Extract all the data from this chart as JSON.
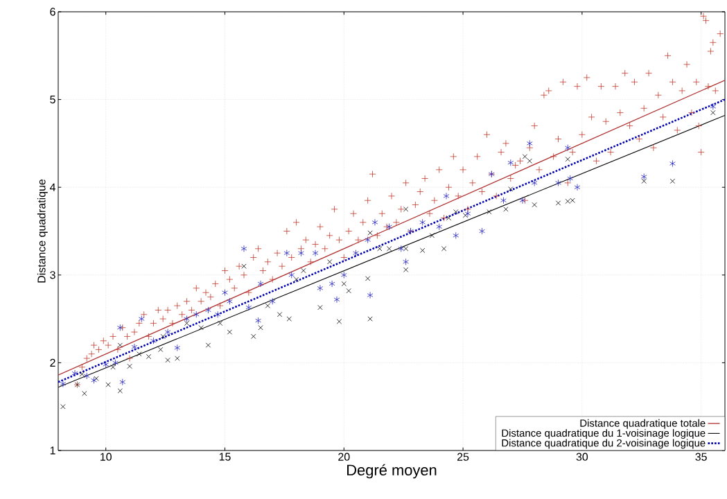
{
  "chart_data": {
    "type": "scatter",
    "xlabel": "Degré moyen",
    "ylabel": "Distance quadratique",
    "xlim": [
      8,
      36
    ],
    "ylim": [
      1,
      6
    ],
    "xticks": [
      10,
      15,
      20,
      25,
      30,
      35
    ],
    "yticks": [
      1,
      2,
      3,
      4,
      5,
      6
    ],
    "grid": true,
    "legend": "bottom right",
    "series": [
      {
        "type": "scatter",
        "color": "#c0392b",
        "marker": "plus",
        "x": [
          8.8,
          9.0,
          9.2,
          9.4,
          9.5,
          9.7,
          9.9,
          10.1,
          10.3,
          10.5,
          10.7,
          10.9,
          11.0,
          11.2,
          11.4,
          11.6,
          11.8,
          12.0,
          12.2,
          12.4,
          12.6,
          12.8,
          13.0,
          13.2,
          13.4,
          13.6,
          13.8,
          14.0,
          14.2,
          14.4,
          14.6,
          14.8,
          15.0,
          15.2,
          15.4,
          15.6,
          15.8,
          16.0,
          16.2,
          16.4,
          16.6,
          16.8,
          17.0,
          17.2,
          17.4,
          17.6,
          17.8,
          18.0,
          18.2,
          18.4,
          18.6,
          18.8,
          19.0,
          19.2,
          19.4,
          19.6,
          19.8,
          20.0,
          20.2,
          20.4,
          20.6,
          20.8,
          21.0,
          21.2,
          21.4,
          21.6,
          21.8,
          22.0,
          22.2,
          22.4,
          22.6,
          22.8,
          23.0,
          23.2,
          23.4,
          23.6,
          23.8,
          24.0,
          24.2,
          24.4,
          24.6,
          24.8,
          25.0,
          25.2,
          25.4,
          25.6,
          25.8,
          26.0,
          26.2,
          26.4,
          26.6,
          26.8,
          27.0,
          27.2,
          27.4,
          27.6,
          27.8,
          28.0,
          28.2,
          28.4,
          28.6,
          28.8,
          29.0,
          29.2,
          29.4,
          29.6,
          29.8,
          30.0,
          30.2,
          30.4,
          30.6,
          30.8,
          31.0,
          31.2,
          31.4,
          31.6,
          31.8,
          32.0,
          32.2,
          32.4,
          32.6,
          32.8,
          33.0,
          33.2,
          33.4,
          33.6,
          33.8,
          34.0,
          34.2,
          34.4,
          34.6,
          34.8,
          35.0,
          35.2,
          35.4,
          35.6,
          35.8,
          35.5,
          35.3,
          35.1,
          34.9
        ],
        "values": [
          1.75,
          1.95,
          2.05,
          2.1,
          2.2,
          2.15,
          2.25,
          2.2,
          2.3,
          2.15,
          2.4,
          2.3,
          2.05,
          2.35,
          2.45,
          2.55,
          2.3,
          2.45,
          2.6,
          2.5,
          2.6,
          2.45,
          2.65,
          2.55,
          2.7,
          2.6,
          2.85,
          2.7,
          2.8,
          2.75,
          2.9,
          2.65,
          3.05,
          2.95,
          2.85,
          3.1,
          3.0,
          2.8,
          3.2,
          3.3,
          3.05,
          3.15,
          2.95,
          3.25,
          3.1,
          3.5,
          3.2,
          3.6,
          3.3,
          3.4,
          3.15,
          3.35,
          3.55,
          3.3,
          3.45,
          3.75,
          3.4,
          3.2,
          3.5,
          3.7,
          3.4,
          3.6,
          3.85,
          4.15,
          3.45,
          3.7,
          3.55,
          3.9,
          3.6,
          3.75,
          4.05,
          3.5,
          3.8,
          3.95,
          4.1,
          3.7,
          3.85,
          4.2,
          3.65,
          4.0,
          4.35,
          3.9,
          4.2,
          3.75,
          4.05,
          4.35,
          3.95,
          4.6,
          4.15,
          3.9,
          4.4,
          4.5,
          4.1,
          4.25,
          4.3,
          3.85,
          4.45,
          4.7,
          4.2,
          5.05,
          5.1,
          4.35,
          4.55,
          5.2,
          4.05,
          4.4,
          5.15,
          4.6,
          5.25,
          4.8,
          4.3,
          5.15,
          4.75,
          4.4,
          5.15,
          4.85,
          5.3,
          4.7,
          5.2,
          4.55,
          4.9,
          5.3,
          4.45,
          5.05,
          4.8,
          5.5,
          5.2,
          4.65,
          5.1,
          5.4,
          4.85,
          5.2,
          4.4,
          5.9,
          5.55,
          5.1,
          5.75,
          5.65,
          5.15,
          5.95,
          4.7
        ]
      },
      {
        "type": "scatter",
        "color": "#000000",
        "marker": "cross",
        "x": [
          8.2,
          8.8,
          9.1,
          9.0,
          9.6,
          10.1,
          10.6,
          10.3,
          10.6,
          11.0,
          11.4,
          11.8,
          12.3,
          12.6,
          13.0,
          12.4,
          13.4,
          14.0,
          14.3,
          14.8,
          15.2,
          15.8,
          16.2,
          16.5,
          16.8,
          17.3,
          17.7,
          18.0,
          18.3,
          19.0,
          19.4,
          19.8,
          20.0,
          20.2,
          21.0,
          21.1,
          21.1,
          21.5,
          21.9,
          22.6,
          22.6,
          23.3,
          23.7,
          24.2,
          24.7,
          25.1,
          26.1,
          26.8,
          27.0,
          27.6,
          27.8,
          28.0,
          29.0,
          29.4,
          29.6,
          29.4,
          32.6,
          33.8,
          35.5,
          22.6,
          24.4
        ],
        "values": [
          1.5,
          1.75,
          1.65,
          1.87,
          1.82,
          1.75,
          1.68,
          1.95,
          2.2,
          1.96,
          2.1,
          2.07,
          2.15,
          2.03,
          2.05,
          2.3,
          2.45,
          2.4,
          2.2,
          2.45,
          2.35,
          3.1,
          2.3,
          2.4,
          2.65,
          2.55,
          2.5,
          2.95,
          3.05,
          2.63,
          3.15,
          2.47,
          2.9,
          2.82,
          2.96,
          2.5,
          3.48,
          3.3,
          3.3,
          3.3,
          3.06,
          3.28,
          3.45,
          3.3,
          3.72,
          3.68,
          3.72,
          3.75,
          3.98,
          4.35,
          4.3,
          3.8,
          3.82,
          3.84,
          3.85,
          4.32,
          4.07,
          4.07,
          4.85,
          3.75,
          3.65
        ]
      },
      {
        "type": "scatter",
        "color": "#2626c0",
        "x": [
          8.2,
          8.7,
          9.2,
          9.5,
          10.0,
          10.4,
          10.7,
          10.6,
          11.2,
          11.5,
          12.0,
          12.6,
          13.0,
          13.4,
          13.8,
          14.3,
          14.7,
          15.0,
          15.2,
          15.8,
          16.0,
          16.4,
          16.5,
          17.0,
          17.6,
          17.8,
          18.2,
          18.8,
          19.0,
          19.5,
          19.7,
          20.0,
          20.5,
          21.0,
          21.1,
          21.3,
          21.9,
          22.4,
          22.6,
          22.8,
          23.3,
          24.0,
          24.3,
          24.7,
          25.2,
          25.8,
          26.2,
          26.7,
          27.0,
          27.5,
          27.8,
          28.0,
          29.0,
          29.4,
          29.5,
          29.8,
          32.6,
          33.8,
          35.5
        ],
        "values": [
          1.76,
          1.88,
          1.85,
          1.8,
          1.98,
          2.0,
          1.78,
          2.4,
          2.18,
          2.5,
          2.25,
          2.35,
          2.17,
          2.5,
          2.55,
          2.6,
          2.55,
          2.8,
          2.7,
          3.3,
          2.63,
          2.48,
          2.9,
          2.7,
          3.25,
          3.0,
          3.25,
          3.25,
          2.85,
          2.9,
          2.72,
          3.0,
          3.25,
          3.4,
          2.77,
          3.6,
          3.55,
          3.3,
          3.15,
          3.5,
          3.6,
          3.55,
          3.9,
          3.45,
          3.7,
          3.5,
          4.15,
          3.85,
          4.28,
          3.85,
          4.5,
          4.05,
          4.05,
          4.45,
          4.1,
          4.0,
          4.12,
          4.27,
          4.92
        ]
      },
      {
        "type": "line",
        "name": "Distance quadratique totale",
        "color": "#b03030",
        "line_style": "solid",
        "x": [
          8,
          36
        ],
        "values": [
          1.86,
          5.22
        ]
      },
      {
        "type": "line",
        "name": "Distance quadratique du 1-voisinage logique",
        "color": "#000000",
        "line_style": "solid",
        "x": [
          8,
          36
        ],
        "values": [
          1.72,
          4.82
        ]
      },
      {
        "type": "line",
        "name": "Distance quadratique du 2-voisinage logique",
        "color": "#0000b0",
        "line_style": "dotted",
        "x": [
          8,
          36
        ],
        "values": [
          1.78,
          5.0
        ]
      }
    ]
  }
}
